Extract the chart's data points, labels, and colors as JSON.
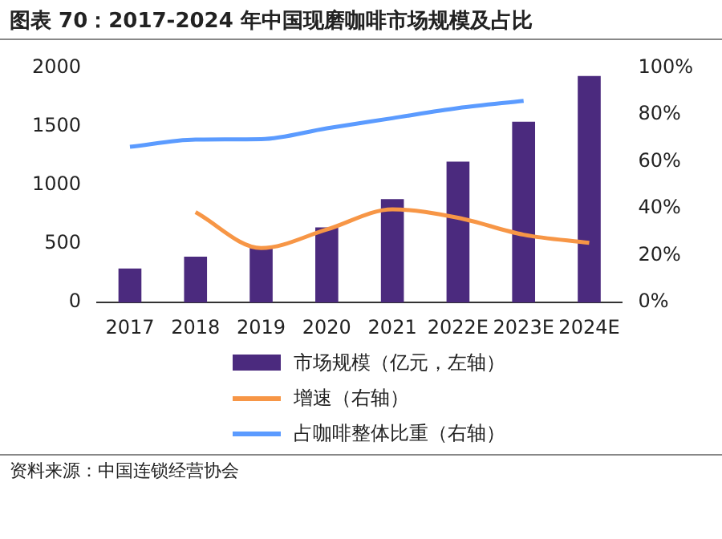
{
  "chart_data": {
    "type": "bar",
    "title": "图表 70：2017-2024 年中国现磨咖啡市场规模及占比",
    "categories": [
      "2017",
      "2018",
      "2019",
      "2020",
      "2021",
      "2022E",
      "2023E",
      "2024E"
    ],
    "series": [
      {
        "name": "市场规模（亿元，左轴）",
        "color": "#4b2a7e",
        "values": [
          290,
          390,
          480,
          640,
          880,
          1200,
          1540,
          1930
        ]
      },
      {
        "name": "增速（右轴）",
        "type": "line",
        "axis": "y2",
        "color": "#f79646",
        "values": [
          null,
          38.5,
          23.2,
          31.1,
          39.7,
          36.1,
          28.9,
          25.4
        ]
      },
      {
        "name": "占咖啡整体比重（右轴）",
        "type": "line",
        "axis": "y2",
        "color": "#5b9bff",
        "values": [
          66.3,
          69.4,
          69.6,
          74.2,
          78.5,
          82.8,
          85.9,
          null
        ]
      }
    ],
    "ylim": [
      0,
      2000
    ],
    "yticks": [
      0,
      500,
      1000,
      1500,
      2000
    ],
    "y2lim": [
      0,
      100
    ],
    "y2ticks": [
      {
        "value": 0,
        "label": "0%"
      },
      {
        "value": 20,
        "label": "20%"
      },
      {
        "value": 40,
        "label": "40%"
      },
      {
        "value": 60,
        "label": "60%"
      },
      {
        "value": 80,
        "label": "80%"
      },
      {
        "value": 100,
        "label": "100%"
      }
    ],
    "grid": false,
    "legend": "bottom",
    "marker": "none",
    "annotations": [
      "资料来源：中国连锁经营协会"
    ]
  }
}
